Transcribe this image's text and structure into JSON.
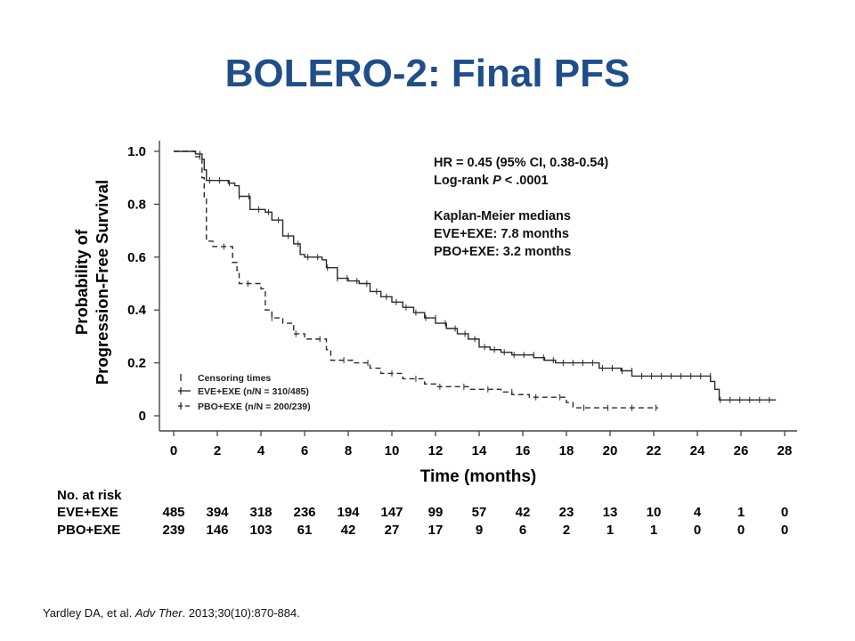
{
  "slide": {
    "title": "BOLERO-2: Final PFS",
    "citation": {
      "authors": "Yardley DA, et al.",
      "journal": "Adv Ther",
      "details": ". 2013;30(10):870-884."
    }
  },
  "stats": {
    "hr": "HR = 0.45 (95% CI, 0.38-0.54)",
    "logrank_prefix": "Log-rank ",
    "logrank_p": "P",
    "logrank_value": " < .0001",
    "medians_title": "Kaplan-Meier medians",
    "median_eve": "EVE+EXE: 7.8 months",
    "median_pbo": "PBO+EXE: 3.2 months"
  },
  "legend": {
    "censoring": "Censoring times",
    "eve": "EVE+EXE (n/N = 310/485)",
    "pbo": "PBO+EXE (n/N = 200/239)"
  },
  "risk_table": {
    "header": "No. at risk",
    "rows": [
      {
        "label": "EVE+EXE",
        "values": [
          "485",
          "394",
          "318",
          "236",
          "194",
          "147",
          "99",
          "57",
          "42",
          "23",
          "13",
          "10",
          "4",
          "1",
          "0"
        ]
      },
      {
        "label": "PBO+EXE",
        "values": [
          "239",
          "146",
          "103",
          "61",
          "42",
          "27",
          "17",
          "9",
          "6",
          "2",
          "1",
          "1",
          "0",
          "0",
          "0"
        ]
      }
    ]
  },
  "chart_data": {
    "type": "line",
    "subtype": "kaplan-meier step curve",
    "xlabel": "Time (months)",
    "ylabel_line1": "Probability of",
    "ylabel_line2": "Progression-Free Survival",
    "xlim": [
      0,
      28
    ],
    "ylim": [
      0,
      1.0
    ],
    "x_ticks": [
      "0",
      "2",
      "4",
      "6",
      "8",
      "10",
      "12",
      "14",
      "16",
      "18",
      "20",
      "22",
      "24",
      "26",
      "28"
    ],
    "y_ticks": [
      "0",
      "0.2",
      "0.4",
      "0.6",
      "0.8",
      "1.0"
    ],
    "grid": false,
    "series": [
      {
        "name": "EVE+EXE",
        "style": "solid",
        "points": [
          [
            0,
            1.0
          ],
          [
            1.0,
            0.99
          ],
          [
            1.3,
            0.97
          ],
          [
            1.4,
            0.93
          ],
          [
            1.5,
            0.89
          ],
          [
            2.5,
            0.88
          ],
          [
            2.8,
            0.87
          ],
          [
            3.0,
            0.83
          ],
          [
            3.5,
            0.78
          ],
          [
            4.2,
            0.77
          ],
          [
            4.5,
            0.74
          ],
          [
            5.0,
            0.68
          ],
          [
            5.5,
            0.65
          ],
          [
            5.8,
            0.61
          ],
          [
            6.0,
            0.6
          ],
          [
            6.8,
            0.59
          ],
          [
            7.0,
            0.56
          ],
          [
            7.5,
            0.52
          ],
          [
            8.0,
            0.51
          ],
          [
            8.5,
            0.5
          ],
          [
            9.0,
            0.47
          ],
          [
            9.5,
            0.45
          ],
          [
            10.0,
            0.43
          ],
          [
            10.5,
            0.41
          ],
          [
            11.0,
            0.39
          ],
          [
            11.5,
            0.37
          ],
          [
            12.0,
            0.35
          ],
          [
            12.5,
            0.33
          ],
          [
            13.0,
            0.31
          ],
          [
            13.5,
            0.29
          ],
          [
            14.0,
            0.26
          ],
          [
            14.5,
            0.25
          ],
          [
            15.0,
            0.24
          ],
          [
            15.5,
            0.23
          ],
          [
            16.5,
            0.22
          ],
          [
            17.0,
            0.21
          ],
          [
            17.5,
            0.2
          ],
          [
            19.5,
            0.18
          ],
          [
            20.5,
            0.17
          ],
          [
            21.0,
            0.15
          ],
          [
            24.6,
            0.13
          ],
          [
            24.8,
            0.1
          ],
          [
            25.0,
            0.06
          ],
          [
            27.6,
            0.06
          ]
        ]
      },
      {
        "name": "PBO+EXE",
        "style": "dashed",
        "points": [
          [
            0,
            1.0
          ],
          [
            1.0,
            0.98
          ],
          [
            1.3,
            0.9
          ],
          [
            1.4,
            0.82
          ],
          [
            1.5,
            0.66
          ],
          [
            1.8,
            0.64
          ],
          [
            2.7,
            0.58
          ],
          [
            2.9,
            0.55
          ],
          [
            3.0,
            0.5
          ],
          [
            4.0,
            0.48
          ],
          [
            4.2,
            0.4
          ],
          [
            4.5,
            0.37
          ],
          [
            5.0,
            0.35
          ],
          [
            5.5,
            0.31
          ],
          [
            6.0,
            0.29
          ],
          [
            7.0,
            0.25
          ],
          [
            7.2,
            0.21
          ],
          [
            8.2,
            0.2
          ],
          [
            9.0,
            0.18
          ],
          [
            9.5,
            0.16
          ],
          [
            10.5,
            0.14
          ],
          [
            11.5,
            0.12
          ],
          [
            12.0,
            0.11
          ],
          [
            13.5,
            0.1
          ],
          [
            15.0,
            0.09
          ],
          [
            15.5,
            0.08
          ],
          [
            16.3,
            0.07
          ],
          [
            18.0,
            0.05
          ],
          [
            18.3,
            0.03
          ],
          [
            22.2,
            0.03
          ]
        ]
      }
    ],
    "colors": {
      "curves": "#2b2b2b",
      "title": "#1f4e89"
    }
  }
}
